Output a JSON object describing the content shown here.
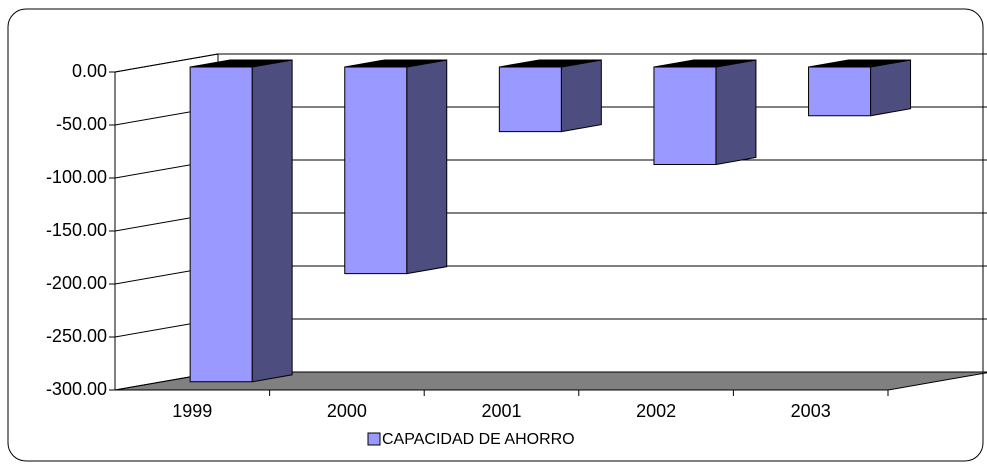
{
  "chart_data": {
    "type": "bar3d",
    "categories": [
      "1999",
      "2000",
      "2001",
      "2002",
      "2003"
    ],
    "series": [
      {
        "name": "CAPACIDAD DE AHORRO",
        "color": "#9999ff",
        "values": [
          -297,
          -195,
          -61,
          -92,
          -46
        ]
      }
    ],
    "ylim": [
      -300,
      0
    ],
    "yticks": [
      {
        "value": 0,
        "label": "0.00"
      },
      {
        "value": -50,
        "label": "-50.00"
      },
      {
        "value": -100,
        "label": "-100.00"
      },
      {
        "value": -150,
        "label": "-150.00"
      },
      {
        "value": -200,
        "label": "-200.00"
      },
      {
        "value": -250,
        "label": "-250.00"
      },
      {
        "value": -300,
        "label": "-300.00"
      }
    ],
    "grid": true,
    "legend": "bottom"
  }
}
